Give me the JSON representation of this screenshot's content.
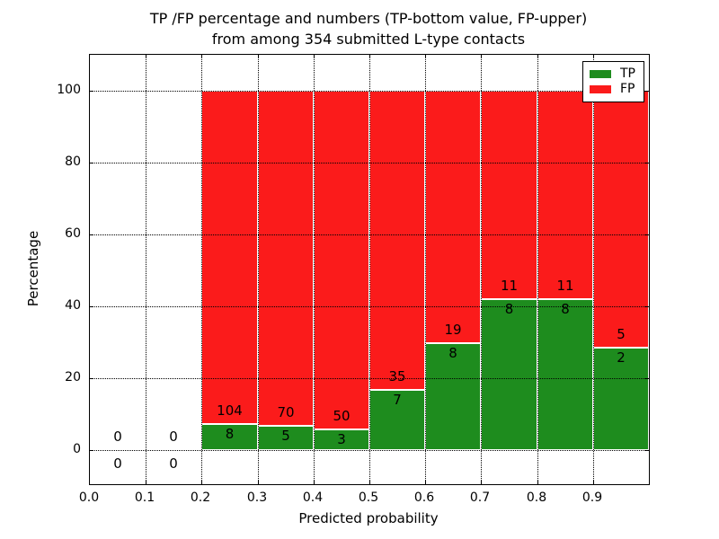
{
  "title": {
    "line1": "TP /FP percentage and numbers (TP-bottom value, FP-upper)",
    "line2": "from among 354 submitted L-type contacts"
  },
  "chart_data": {
    "type": "bar",
    "stacked": true,
    "normalization": "each bin's TP+FP stack is scaled to 100%",
    "title": "TP /FP percentage and numbers (TP-bottom value, FP-upper) from among 354 submitted L-type contacts",
    "xlabel": "Predicted probability",
    "ylabel": "Percentage",
    "total_contacts": 354,
    "x_bin_edges": [
      0.0,
      0.1,
      0.2,
      0.3,
      0.4,
      0.5,
      0.6,
      0.7,
      0.8,
      0.9,
      1.0
    ],
    "x_ticks": [
      0.0,
      0.1,
      0.2,
      0.3,
      0.4,
      0.5,
      0.6,
      0.7,
      0.8,
      0.9
    ],
    "x_tick_labels": [
      "0.0",
      "0.1",
      "0.2",
      "0.3",
      "0.4",
      "0.5",
      "0.6",
      "0.7",
      "0.8",
      "0.9"
    ],
    "y_ticks": [
      0,
      20,
      40,
      60,
      80,
      100
    ],
    "y_tick_labels": [
      "0",
      "20",
      "40",
      "60",
      "80",
      "100"
    ],
    "xlim": [
      0.0,
      1.0
    ],
    "ylim": [
      -9.5,
      110
    ],
    "grid": {
      "style": "dotted",
      "color": "#000000"
    },
    "bar_edge_color": "#ffffff",
    "series": [
      {
        "name": "TP",
        "color": "#1e8c1e",
        "counts": [
          0,
          0,
          8,
          5,
          3,
          7,
          8,
          8,
          8,
          2
        ],
        "percent": [
          0,
          0,
          7.14,
          6.67,
          5.66,
          16.67,
          29.63,
          42.11,
          42.11,
          28.57
        ]
      },
      {
        "name": "FP",
        "color": "#fb1b1b",
        "counts": [
          0,
          0,
          104,
          70,
          50,
          35,
          19,
          11,
          11,
          5
        ],
        "percent": [
          0,
          0,
          92.86,
          93.33,
          94.34,
          83.33,
          70.37,
          57.89,
          57.89,
          71.43
        ]
      }
    ],
    "legend": {
      "position": "upper right",
      "entries": [
        {
          "label": "TP",
          "color": "#1e8c1e"
        },
        {
          "label": "FP",
          "color": "#fb1b1b"
        }
      ]
    }
  }
}
